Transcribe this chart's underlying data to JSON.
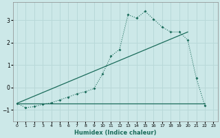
{
  "xlabel": "Humidex (Indice chaleur)",
  "background_color": "#cce8e8",
  "grid_color": "#b0d0d0",
  "line_color": "#1a6b5a",
  "xlim": [
    -0.5,
    23.5
  ],
  "ylim": [
    -1.5,
    3.8
  ],
  "yticks": [
    -1,
    0,
    1,
    2,
    3
  ],
  "xticks": [
    0,
    1,
    2,
    3,
    4,
    5,
    6,
    7,
    8,
    9,
    10,
    11,
    12,
    13,
    14,
    15,
    16,
    17,
    18,
    19,
    20,
    21,
    22,
    23
  ],
  "curve1_x": [
    0,
    1,
    2,
    3,
    4,
    5,
    6,
    7,
    8,
    9,
    10,
    11,
    12,
    13,
    14,
    15,
    16,
    17,
    18,
    19,
    20,
    21,
    22
  ],
  "curve1_y": [
    -0.7,
    -0.9,
    -0.85,
    -0.75,
    -0.68,
    -0.55,
    -0.42,
    -0.28,
    -0.18,
    -0.05,
    0.6,
    1.4,
    1.7,
    3.25,
    3.1,
    3.4,
    3.05,
    2.7,
    2.48,
    2.48,
    2.12,
    0.42,
    -0.8
  ],
  "curve2_x": [
    0,
    20
  ],
  "curve2_y": [
    -0.7,
    2.48
  ],
  "curve3_x": [
    0,
    22
  ],
  "curve3_y": [
    -0.7,
    -0.7
  ]
}
